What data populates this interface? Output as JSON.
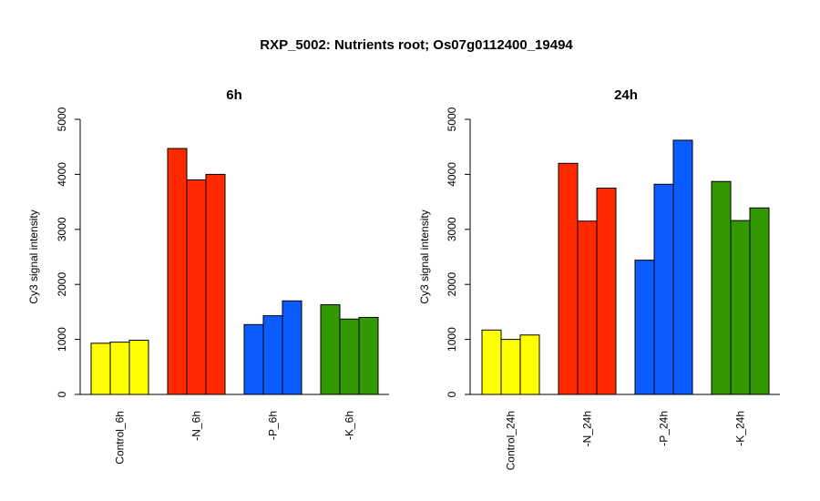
{
  "title": "RXP_5002: Nutrients root; Os07g0112400_19494",
  "colors": {
    "control": "#FFFF00",
    "n": "#FF2A00",
    "p": "#0A5CFF",
    "k": "#339900"
  },
  "chart_data": [
    {
      "type": "bar",
      "title": "6h",
      "ylabel": "Cy3 signal intensity",
      "xlabel": "",
      "ylim": [
        0,
        5000
      ],
      "yticks": [
        "0",
        "1000",
        "2000",
        "3000",
        "4000",
        "5000"
      ],
      "grid": false,
      "groups": [
        {
          "label": "Control_6h",
          "color_key": "control",
          "values": [
            930,
            950,
            985
          ]
        },
        {
          "label": "-N_6h",
          "color_key": "n",
          "values": [
            4470,
            3900,
            4000
          ]
        },
        {
          "label": "-P_6h",
          "color_key": "p",
          "values": [
            1270,
            1430,
            1700
          ]
        },
        {
          "label": "-K_6h",
          "color_key": "k",
          "values": [
            1630,
            1370,
            1400
          ]
        }
      ]
    },
    {
      "type": "bar",
      "title": "24h",
      "ylabel": "Cy3 signal intensity",
      "xlabel": "",
      "ylim": [
        0,
        5000
      ],
      "yticks": [
        "0",
        "1000",
        "2000",
        "3000",
        "4000",
        "5000"
      ],
      "grid": false,
      "groups": [
        {
          "label": "Control_24h",
          "color_key": "control",
          "values": [
            1170,
            1000,
            1080
          ]
        },
        {
          "label": "-N_24h",
          "color_key": "n",
          "values": [
            4200,
            3150,
            3750
          ]
        },
        {
          "label": "-P_24h",
          "color_key": "p",
          "values": [
            2440,
            3820,
            4620
          ]
        },
        {
          "label": "-K_24h",
          "color_key": "k",
          "values": [
            3870,
            3160,
            3390
          ]
        }
      ]
    }
  ]
}
